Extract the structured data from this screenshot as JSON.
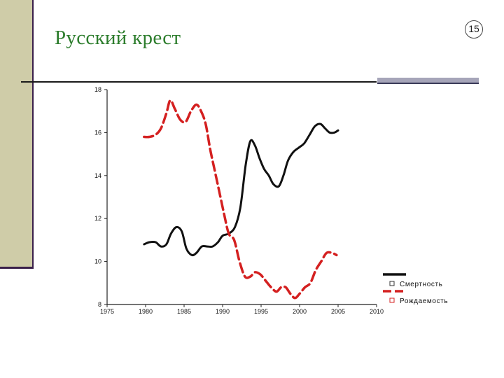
{
  "slide": {
    "title": "Русский крест",
    "page_number": "15"
  },
  "colors": {
    "title": "#2d7d2d",
    "band": "#cfcca8",
    "mortality": "#111111",
    "births": "#d42020"
  },
  "chart_data": {
    "type": "line",
    "x_ticks": [
      "1975",
      "1980",
      "1985",
      "1990",
      "1995",
      "2000",
      "2005",
      "2010"
    ],
    "y_ticks": [
      "8",
      "10",
      "12",
      "14",
      "16",
      "18"
    ],
    "xlim": [
      1975,
      2010
    ],
    "ylim": [
      8,
      18
    ],
    "grid": false,
    "legend_position": "bottom-right",
    "series": [
      {
        "name": "Смертность",
        "style": "solid",
        "color": "#111111",
        "x": [
          1979.8,
          1980.5,
          1981.3,
          1982.0,
          1982.7,
          1983.3,
          1984.0,
          1984.7,
          1985.3,
          1986.0,
          1986.6,
          1987.3,
          1988.0,
          1988.7,
          1989.4,
          1990.0,
          1990.8,
          1991.6,
          1992.3,
          1993.0,
          1993.6,
          1994.2,
          1994.8,
          1995.4,
          1996.0,
          1996.6,
          1997.3,
          1997.9,
          1998.5,
          1999.2,
          1999.9,
          2000.6,
          2001.3,
          2002.0,
          2002.7,
          2003.3,
          2003.9,
          2004.5,
          2005.0
        ],
        "y": [
          10.8,
          10.9,
          10.9,
          10.7,
          10.8,
          11.3,
          11.6,
          11.4,
          10.6,
          10.3,
          10.4,
          10.7,
          10.7,
          10.7,
          10.9,
          11.2,
          11.3,
          11.6,
          12.5,
          14.5,
          15.6,
          15.4,
          14.8,
          14.3,
          14.0,
          13.6,
          13.5,
          14.0,
          14.7,
          15.1,
          15.3,
          15.5,
          15.9,
          16.3,
          16.4,
          16.2,
          16.0,
          16.0,
          16.1
        ]
      },
      {
        "name": "Рождаемость",
        "style": "dashed",
        "color": "#d42020",
        "x": [
          1979.8,
          1980.5,
          1981.3,
          1982.0,
          1982.7,
          1983.2,
          1983.8,
          1984.5,
          1985.2,
          1985.9,
          1986.6,
          1987.2,
          1987.8,
          1988.4,
          1989.0,
          1989.6,
          1990.2,
          1990.8,
          1991.5,
          1992.2,
          1992.9,
          1993.6,
          1994.2,
          1994.9,
          1995.6,
          1996.3,
          1997.0,
          1997.6,
          1998.2,
          1998.8,
          1999.4,
          2000.0,
          2000.7,
          2001.4,
          2002.1,
          2002.8,
          2003.5,
          2004.2,
          2004.8
        ],
        "y": [
          15.8,
          15.8,
          15.9,
          16.2,
          16.9,
          17.5,
          17.1,
          16.6,
          16.5,
          17.0,
          17.3,
          17.0,
          16.4,
          15.2,
          14.2,
          13.2,
          12.2,
          11.3,
          11.0,
          10.0,
          9.3,
          9.3,
          9.5,
          9.4,
          9.1,
          8.8,
          8.6,
          8.8,
          8.8,
          8.5,
          8.3,
          8.5,
          8.8,
          9.0,
          9.6,
          10.0,
          10.4,
          10.4,
          10.3
        ]
      }
    ]
  }
}
